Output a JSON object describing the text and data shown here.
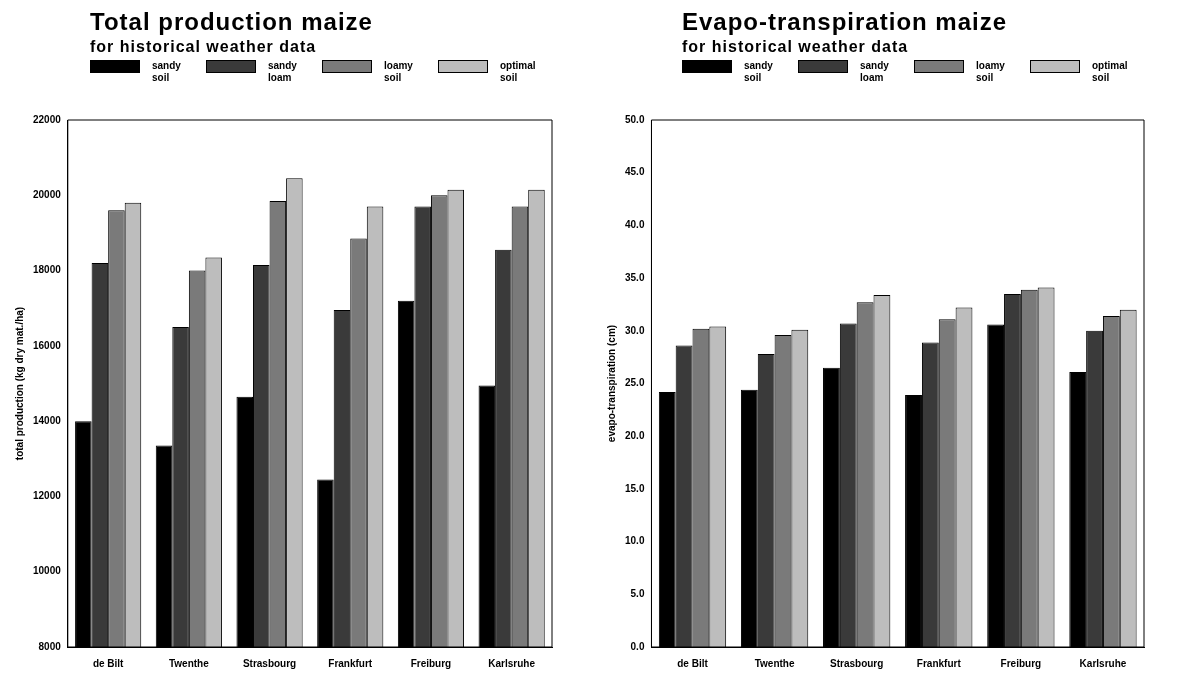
{
  "chart_data": [
    {
      "type": "bar",
      "title": "Total production maize",
      "subtitle": "for historical weather data",
      "ylabel": "total production (kg dry mat./ha)",
      "categories": [
        "de Bilt",
        "Twenthe",
        "Strasbourg",
        "Frankfurt",
        "Freiburg",
        "Karlsruhe"
      ],
      "series": [
        {
          "name": "sandy soil",
          "color": "#000000",
          "values": [
            14000,
            13350,
            14650,
            12450,
            17200,
            14950
          ]
        },
        {
          "name": "sandy loam",
          "color": "#3a3a3a",
          "values": [
            18200,
            16500,
            18150,
            16950,
            19700,
            18550
          ]
        },
        {
          "name": "loamy soil",
          "color": "#7a7a7a",
          "values": [
            19600,
            18000,
            19850,
            18850,
            20000,
            19700
          ]
        },
        {
          "name": "optimal soil",
          "color": "#bdbdbd",
          "values": [
            19800,
            18350,
            20450,
            19700,
            20150,
            20150
          ]
        }
      ],
      "ylim": [
        8000,
        22000
      ],
      "yticks": [
        8000,
        10000,
        12000,
        14000,
        16000,
        18000,
        20000,
        22000
      ],
      "grid": false,
      "legend": "top left"
    },
    {
      "type": "bar",
      "title": "Evapo-transpiration maize",
      "subtitle": "for historical weather data",
      "ylabel": "evapo-transpiration (cm)",
      "categories": [
        "de Bilt",
        "Twenthe",
        "Strasbourg",
        "Frankfurt",
        "Freiburg",
        "Karlsruhe"
      ],
      "series": [
        {
          "name": "sandy soil",
          "color": "#000000",
          "values": [
            24.2,
            24.4,
            26.5,
            23.9,
            30.6,
            26.1
          ]
        },
        {
          "name": "sandy loam",
          "color": "#3a3a3a",
          "values": [
            28.6,
            27.8,
            30.7,
            28.9,
            33.5,
            30.0
          ]
        },
        {
          "name": "loamy soil",
          "color": "#7a7a7a",
          "values": [
            30.2,
            29.6,
            32.7,
            31.1,
            33.9,
            31.4
          ]
        },
        {
          "name": "optimal soil",
          "color": "#bdbdbd",
          "values": [
            30.4,
            30.1,
            33.4,
            32.2,
            34.1,
            32.0
          ]
        }
      ],
      "ylim": [
        0,
        50
      ],
      "yticks": [
        {
          "value": 0,
          "label": "0.0"
        },
        {
          "value": 5,
          "label": "5.0"
        },
        {
          "value": 10,
          "label": "10.0"
        },
        {
          "value": 15,
          "label": "15.0"
        },
        {
          "value": 20,
          "label": "20.0"
        },
        {
          "value": 25,
          "label": "25.0"
        },
        {
          "value": 30,
          "label": "30.0"
        },
        {
          "value": 35,
          "label": "35.0"
        },
        {
          "value": 40,
          "label": "40.0"
        },
        {
          "value": 45,
          "label": "45.0"
        },
        {
          "value": 50,
          "label": "50.0"
        }
      ],
      "grid": false,
      "legend": "top left"
    }
  ]
}
